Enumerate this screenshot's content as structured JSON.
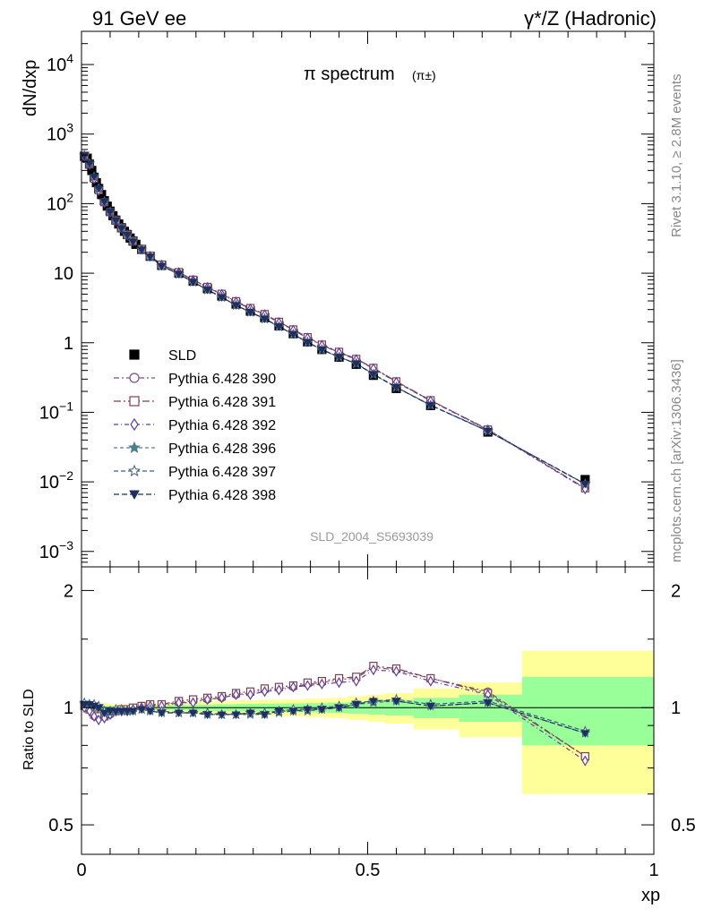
{
  "header": {
    "left": "91 GeV ee",
    "right": "γ*/Z (Hadronic)"
  },
  "side_labels": {
    "rivet": "Rivet 3.1.10, ≥ 2.8M events",
    "mcplots": "mcplots.cern.ch [arXiv:1306.3436]"
  },
  "watermark": "SLD_2004_S5693039",
  "colors": {
    "data": "#000000",
    "p390": "#7f4f7f",
    "p391": "#7f3f4f",
    "p392": "#5f3f9f",
    "p396": "#4f7f8f",
    "p397": "#3f5f7f",
    "p398": "#1f2f5f",
    "band_inner": "#99ff99",
    "band_outer": "#ffff99"
  },
  "chart_data": [
    {
      "type": "scatter",
      "title": "π spectrum",
      "title_note": "(π±)",
      "ylabel": "dN/dxp",
      "xlim": [
        0,
        1
      ],
      "yscale": "log",
      "ylim": [
        0.0006,
        30000
      ],
      "y_ticks": [
        "10^-3",
        "10^-2",
        "10^-1",
        "1",
        "10",
        "10^2",
        "10^3",
        "10^4"
      ],
      "legend_position": "center-left",
      "x": [
        0.005,
        0.01,
        0.014,
        0.018,
        0.022,
        0.026,
        0.03,
        0.035,
        0.04,
        0.045,
        0.05,
        0.055,
        0.06,
        0.065,
        0.07,
        0.075,
        0.08,
        0.085,
        0.09,
        0.095,
        0.105,
        0.12,
        0.14,
        0.17,
        0.195,
        0.22,
        0.245,
        0.27,
        0.295,
        0.32,
        0.345,
        0.37,
        0.395,
        0.42,
        0.45,
        0.48,
        0.51,
        0.55,
        0.61,
        0.71,
        0.88
      ],
      "series": [
        {
          "name": "SLD",
          "marker": "square-filled",
          "errors": true,
          "values": [
            480,
            450,
            370,
            300,
            240,
            200,
            165,
            135,
            110,
            92,
            78,
            67,
            58,
            51,
            45,
            40,
            36,
            32,
            29,
            26,
            22,
            17.5,
            13,
            10,
            7.7,
            6.0,
            4.7,
            3.6,
            2.85,
            2.3,
            1.75,
            1.35,
            1.03,
            0.8,
            0.62,
            0.49,
            0.34,
            0.22,
            0.125,
            0.052,
            0.0108
          ]
        },
        {
          "name": "Pythia 6.428 390",
          "marker": "circle-open",
          "values": [
            485,
            455,
            365,
            290,
            228,
            188,
            155,
            128,
            104,
            88,
            75,
            65,
            57,
            50,
            44.5,
            39.5,
            35.5,
            31.8,
            28.8,
            26,
            22.2,
            17.7,
            13.2,
            10.3,
            8.0,
            6.3,
            5.0,
            3.9,
            3.1,
            2.55,
            1.97,
            1.53,
            1.18,
            0.93,
            0.73,
            0.58,
            0.43,
            0.275,
            0.148,
            0.057,
            0.0081
          ]
        },
        {
          "name": "Pythia 6.428 391",
          "marker": "square-open",
          "values": [
            487,
            453,
            368,
            292,
            230,
            190,
            156,
            129,
            105,
            89,
            75.5,
            65.5,
            57.3,
            50.3,
            44.7,
            39.7,
            35.7,
            32,
            29,
            26.1,
            22.3,
            17.8,
            13.3,
            10.35,
            8.05,
            6.35,
            5.05,
            3.95,
            3.15,
            2.58,
            2.0,
            1.55,
            1.2,
            0.94,
            0.74,
            0.585,
            0.435,
            0.278,
            0.149,
            0.0565,
            0.0081
          ]
        },
        {
          "name": "Pythia 6.428 392",
          "marker": "diamond-open",
          "values": [
            483,
            452,
            364,
            289,
            227,
            187,
            154,
            127,
            103.5,
            87.5,
            74.8,
            64.8,
            56.8,
            49.8,
            44.3,
            39.3,
            35.3,
            31.7,
            28.7,
            25.9,
            22.1,
            17.6,
            13.15,
            10.25,
            7.95,
            6.28,
            4.98,
            3.88,
            3.08,
            2.53,
            1.95,
            1.52,
            1.17,
            0.92,
            0.72,
            0.575,
            0.425,
            0.272,
            0.146,
            0.056,
            0.0079
          ]
        },
        {
          "name": "Pythia 6.428 396",
          "marker": "star-filled",
          "values": [
            490,
            460,
            376,
            305,
            243,
            202,
            165,
            133,
            107,
            89,
            76,
            65.5,
            57,
            50,
            44.2,
            39.3,
            35.2,
            31.5,
            28.5,
            25.7,
            21.8,
            17.2,
            12.6,
            9.7,
            7.45,
            5.75,
            4.5,
            3.45,
            2.75,
            2.2,
            1.7,
            1.32,
            1.01,
            0.79,
            0.62,
            0.5,
            0.35,
            0.228,
            0.126,
            0.0535,
            0.0093
          ]
        },
        {
          "name": "Pythia 6.428 397",
          "marker": "star-open",
          "values": [
            492,
            462,
            378,
            306,
            244,
            203,
            166,
            134,
            107.5,
            89.5,
            76.3,
            65.8,
            57.3,
            50.3,
            44.4,
            39.5,
            35.4,
            31.7,
            28.6,
            25.8,
            21.9,
            17.3,
            12.7,
            9.75,
            7.5,
            5.8,
            4.52,
            3.47,
            2.77,
            2.22,
            1.72,
            1.33,
            1.02,
            0.8,
            0.625,
            0.505,
            0.355,
            0.23,
            0.127,
            0.054,
            0.0094
          ]
        },
        {
          "name": "Pythia 6.428 398",
          "marker": "triangle-down-filled",
          "values": [
            491,
            461,
            377,
            305.5,
            243.5,
            202.5,
            165.5,
            133.5,
            107.2,
            89.2,
            76.1,
            65.6,
            57.1,
            50.1,
            44.3,
            39.4,
            35.3,
            31.6,
            28.55,
            25.75,
            21.85,
            17.25,
            12.65,
            9.72,
            7.47,
            5.77,
            4.51,
            3.46,
            2.76,
            2.21,
            1.71,
            1.325,
            1.015,
            0.795,
            0.622,
            0.502,
            0.352,
            0.229,
            0.126,
            0.0537,
            0.0093
          ]
        }
      ]
    },
    {
      "type": "line",
      "ylabel": "Ratio to SLD",
      "xlabel": "xp",
      "x_ticks": [
        "0",
        "0.5",
        "1"
      ],
      "y_ticks": [
        "0.5",
        "1",
        "2"
      ],
      "yscale": "log",
      "ylim": [
        0.42,
        2.3
      ],
      "xlim": [
        0,
        1
      ],
      "bands": {
        "edges": [
          0.0,
          0.02,
          0.05,
          0.08,
          0.11,
          0.15,
          0.19,
          0.23,
          0.27,
          0.31,
          0.35,
          0.39,
          0.43,
          0.465,
          0.5,
          0.53,
          0.58,
          0.66,
          0.77,
          1.0
        ],
        "inner": [
          0.015,
          0.012,
          0.01,
          0.01,
          0.012,
          0.015,
          0.018,
          0.02,
          0.022,
          0.024,
          0.025,
          0.027,
          0.03,
          0.035,
          0.04,
          0.045,
          0.06,
          0.08,
          0.2
        ],
        "outer": [
          0.03,
          0.024,
          0.02,
          0.02,
          0.024,
          0.03,
          0.036,
          0.04,
          0.044,
          0.048,
          0.05,
          0.055,
          0.06,
          0.07,
          0.08,
          0.09,
          0.12,
          0.16,
          0.4
        ]
      },
      "reference_line": 1,
      "x": [
        0.005,
        0.01,
        0.014,
        0.018,
        0.022,
        0.026,
        0.03,
        0.035,
        0.04,
        0.045,
        0.05,
        0.055,
        0.06,
        0.065,
        0.07,
        0.075,
        0.08,
        0.085,
        0.09,
        0.095,
        0.105,
        0.12,
        0.14,
        0.17,
        0.195,
        0.22,
        0.245,
        0.27,
        0.295,
        0.32,
        0.345,
        0.37,
        0.395,
        0.42,
        0.45,
        0.48,
        0.51,
        0.55,
        0.61,
        0.71,
        0.88
      ],
      "series": [
        {
          "name": "Pythia 6.428 390",
          "values": [
            1.01,
            1.01,
            0.99,
            0.97,
            0.95,
            0.94,
            0.94,
            0.95,
            0.95,
            0.96,
            0.96,
            0.97,
            0.98,
            0.98,
            0.99,
            0.99,
            0.99,
            0.99,
            0.99,
            1.0,
            1.01,
            1.01,
            1.02,
            1.03,
            1.04,
            1.05,
            1.06,
            1.08,
            1.09,
            1.11,
            1.12,
            1.13,
            1.15,
            1.16,
            1.18,
            1.19,
            1.27,
            1.25,
            1.19,
            1.1,
            0.75
          ]
        },
        {
          "name": "Pythia 6.428 391",
          "values": [
            1.01,
            1.01,
            0.99,
            0.97,
            0.96,
            0.95,
            0.95,
            0.95,
            0.95,
            0.96,
            0.97,
            0.98,
            0.98,
            0.99,
            0.99,
            0.99,
            0.99,
            1.0,
            1.0,
            1.0,
            1.01,
            1.02,
            1.02,
            1.04,
            1.05,
            1.06,
            1.07,
            1.09,
            1.1,
            1.12,
            1.13,
            1.14,
            1.16,
            1.17,
            1.19,
            1.2,
            1.28,
            1.26,
            1.19,
            1.09,
            0.75
          ]
        },
        {
          "name": "Pythia 6.428 392",
          "values": [
            1.0,
            1.0,
            0.98,
            0.96,
            0.95,
            0.94,
            0.93,
            0.94,
            0.94,
            0.95,
            0.96,
            0.97,
            0.98,
            0.98,
            0.98,
            0.98,
            0.98,
            0.99,
            0.99,
            1.0,
            1.0,
            1.01,
            1.01,
            1.03,
            1.03,
            1.05,
            1.06,
            1.08,
            1.08,
            1.1,
            1.11,
            1.13,
            1.14,
            1.15,
            1.16,
            1.17,
            1.25,
            1.24,
            1.17,
            1.08,
            0.73
          ]
        },
        {
          "name": "Pythia 6.428 396",
          "values": [
            1.02,
            1.02,
            1.02,
            1.02,
            1.01,
            1.01,
            1.0,
            0.99,
            0.97,
            0.97,
            0.97,
            0.98,
            0.98,
            0.98,
            0.98,
            0.98,
            0.98,
            0.98,
            0.98,
            0.99,
            0.99,
            0.98,
            0.97,
            0.97,
            0.97,
            0.96,
            0.96,
            0.96,
            0.96,
            0.96,
            0.97,
            0.98,
            0.98,
            0.99,
            1.0,
            1.02,
            1.03,
            1.04,
            1.01,
            1.03,
            0.86
          ]
        },
        {
          "name": "Pythia 6.428 397",
          "values": [
            1.03,
            1.03,
            1.02,
            1.02,
            1.02,
            1.01,
            1.01,
            0.99,
            0.98,
            0.97,
            0.98,
            0.98,
            0.99,
            0.99,
            0.99,
            0.99,
            0.98,
            0.99,
            0.99,
            0.99,
            0.99,
            0.99,
            0.98,
            0.97,
            0.97,
            0.97,
            0.96,
            0.96,
            0.97,
            0.97,
            0.98,
            0.99,
            0.99,
            1.0,
            1.01,
            1.03,
            1.04,
            1.05,
            1.02,
            1.04,
            0.87
          ]
        },
        {
          "name": "Pythia 6.428 398",
          "values": [
            1.02,
            1.02,
            1.02,
            1.02,
            1.01,
            1.01,
            1.0,
            0.99,
            0.97,
            0.97,
            0.98,
            0.98,
            0.98,
            0.98,
            0.98,
            0.98,
            0.98,
            0.99,
            0.98,
            0.99,
            0.99,
            0.98,
            0.97,
            0.97,
            0.97,
            0.96,
            0.96,
            0.96,
            0.97,
            0.96,
            0.98,
            0.98,
            0.99,
            0.99,
            1.0,
            1.02,
            1.04,
            1.04,
            1.01,
            1.03,
            0.86
          ]
        }
      ]
    }
  ]
}
